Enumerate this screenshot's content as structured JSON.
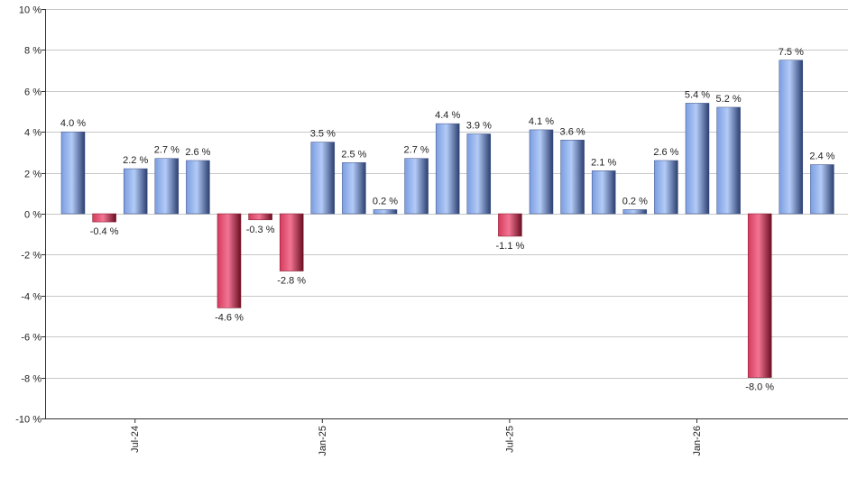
{
  "chart_data": {
    "type": "bar",
    "title": "",
    "xlabel": "",
    "ylabel": "",
    "ylim": [
      -10,
      10
    ],
    "y_ticks": [
      10,
      8,
      6,
      4,
      2,
      0,
      -2,
      -4,
      -6,
      -8,
      -10
    ],
    "y_tick_labels": [
      "10 %",
      "8 %",
      "6 %",
      "4 %",
      "2 %",
      "0 %",
      "-2 %",
      "-4 %",
      "-6 %",
      "-8 %",
      "-10 %"
    ],
    "grid": "horizontal",
    "values": [
      4.0,
      -0.4,
      2.2,
      2.7,
      2.6,
      -4.6,
      -0.3,
      -2.8,
      3.5,
      2.5,
      0.2,
      2.7,
      4.4,
      3.9,
      -1.1,
      4.1,
      3.6,
      2.1,
      0.2,
      2.6,
      5.4,
      5.2,
      -8.0,
      7.5,
      2.4
    ],
    "labels": [
      "4.0 %",
      "-0.4 %",
      "2.2 %",
      "2.7 %",
      "2.6 %",
      "-4.6 %",
      "-0.3 %",
      "-2.8 %",
      "3.5 %",
      "2.5 %",
      "0.2 %",
      "2.7 %",
      "4.4 %",
      "3.9 %",
      "-1.1 %",
      "4.1 %",
      "3.6 %",
      "2.1 %",
      "0.2 %",
      "2.6 %",
      "5.4 %",
      "5.2 %",
      "-8.0 %",
      "7.5 %",
      "2.4 %"
    ],
    "x_tick_labels": [
      {
        "label": "Jul-24",
        "index": 2
      },
      {
        "label": "Jan-25",
        "index": 8
      },
      {
        "label": "Jul-25",
        "index": 14
      },
      {
        "label": "Jan-26",
        "index": 20
      }
    ],
    "colors": {
      "positive_light": "#a9c4f5",
      "positive_mid": "#6f93d8",
      "positive_dark": "#2c3f70",
      "negative_light": "#f06e8d",
      "negative_mid": "#c8284c",
      "negative_dark": "#6a0e22",
      "grid": "#c8c8c8",
      "axis": "#333333"
    }
  }
}
